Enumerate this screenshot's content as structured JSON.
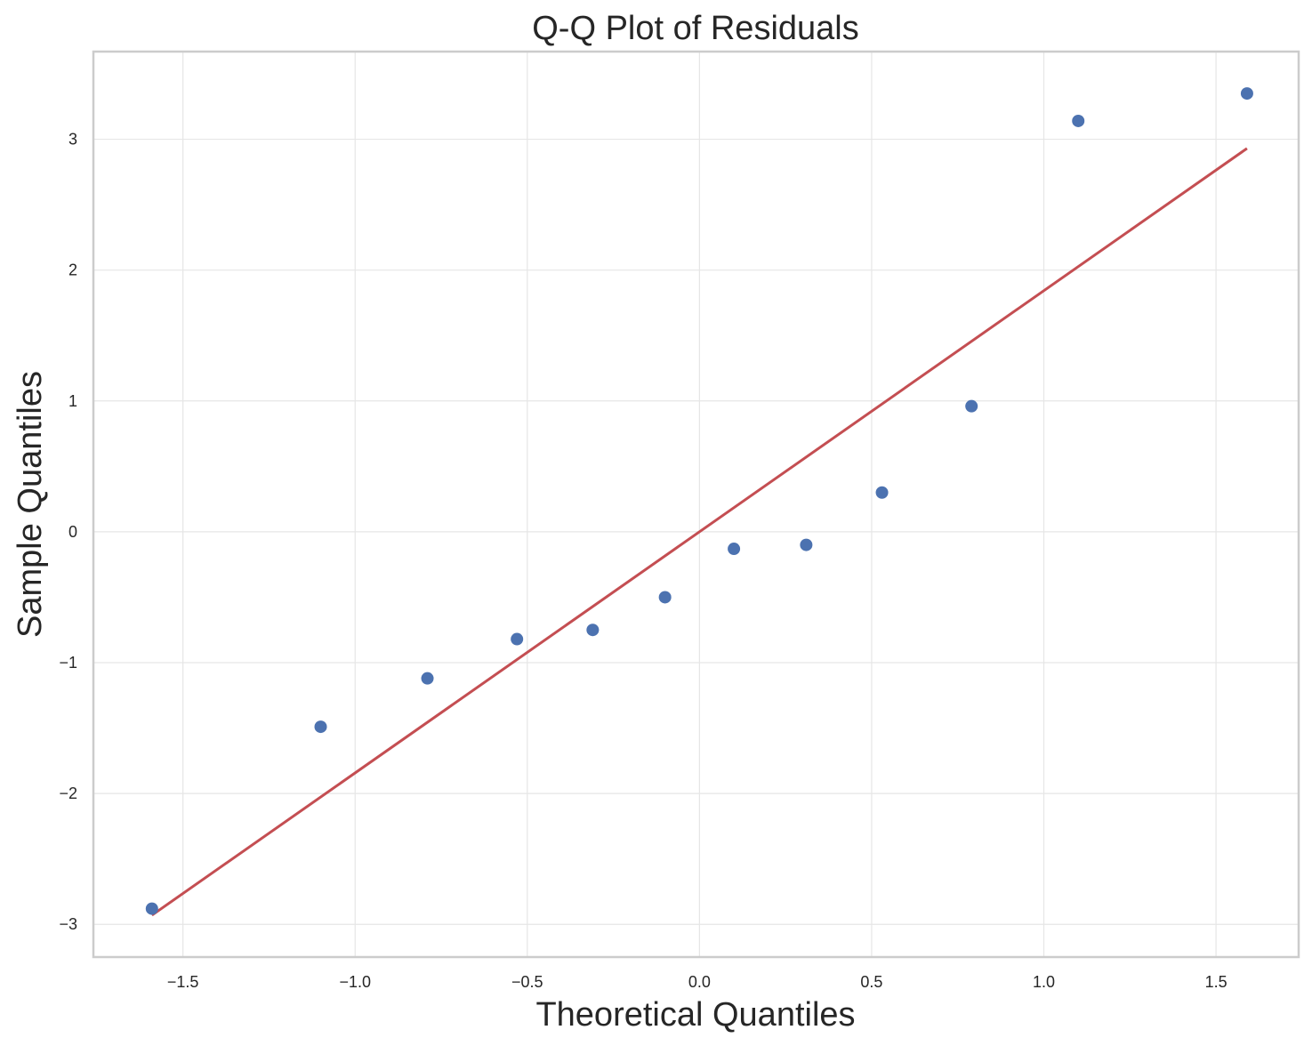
{
  "chart_data": {
    "type": "scatter",
    "title": "Q-Q Plot of Residuals",
    "xlabel": "Theoretical Quantiles",
    "ylabel": "Sample Quantiles",
    "xlim": [
      -1.76,
      1.74
    ],
    "ylim": [
      -3.25,
      3.67
    ],
    "x_ticks": [
      -1.5,
      -1.0,
      -0.5,
      0.0,
      0.5,
      1.0,
      1.5
    ],
    "x_tick_labels": [
      "−1.5",
      "−1.0",
      "−0.5",
      "0.0",
      "0.5",
      "1.0",
      "1.5"
    ],
    "y_ticks": [
      -3,
      -2,
      -1,
      0,
      1,
      2,
      3
    ],
    "y_tick_labels": [
      "−3",
      "−2",
      "−1",
      "0",
      "1",
      "2",
      "3"
    ],
    "grid": true,
    "points": {
      "color": "#4c72b0",
      "x": [
        -1.59,
        -1.1,
        -0.79,
        -0.53,
        -0.31,
        -0.1,
        0.1,
        0.31,
        0.53,
        0.79,
        1.1,
        1.59
      ],
      "y": [
        -2.88,
        -1.49,
        -1.12,
        -0.82,
        -0.75,
        -0.5,
        -0.13,
        -0.1,
        0.3,
        0.96,
        3.14,
        3.35
      ]
    },
    "reference_line": {
      "color": "#c44e52",
      "x": [
        -1.59,
        1.59
      ],
      "y": [
        -2.93,
        2.93
      ]
    }
  }
}
